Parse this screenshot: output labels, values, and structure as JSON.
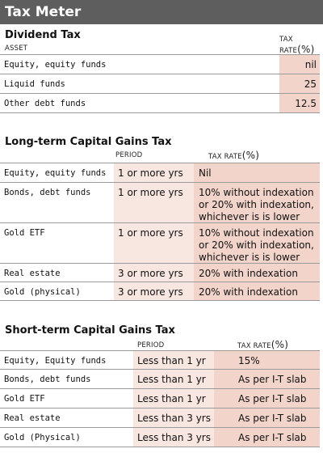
{
  "title": "Tax Meter",
  "dividend": {
    "heading": "Dividend Tax",
    "asset_hdr": "ASSET",
    "rate_hdr_line1": "TAX",
    "rate_hdr_line2": "RATE",
    "pct": "(%)",
    "rows": [
      {
        "asset": "Equity, equity funds",
        "rate": "nil"
      },
      {
        "asset": "Liquid funds",
        "rate": "25"
      },
      {
        "asset": "Other debt funds",
        "rate": "12.5"
      }
    ]
  },
  "ltcg": {
    "heading": "Long-term Capital Gains Tax",
    "period_hdr": "PERIOD",
    "rate_hdr": "TAX RATE",
    "pct": "(%)",
    "rows": [
      {
        "asset": "Equity, equity funds",
        "period": "1 or more yrs",
        "rate": "Nil"
      },
      {
        "asset": "Bonds, debt funds",
        "period": "1 or more yrs",
        "rate": "10% without indexation or 20% with indexation, whichever is is lower"
      },
      {
        "asset": "Gold ETF",
        "period": "1 or more yrs",
        "rate": "10% without indexation or 20% with indexation, whichever is is lower"
      },
      {
        "asset": "Real estate",
        "period": "3 or more yrs",
        "rate": "20% with indexation"
      },
      {
        "asset": "Gold (physical)",
        "period": "3 or more yrs",
        "rate": "20% with indexation"
      }
    ]
  },
  "stcg": {
    "heading": "Short-term Capital Gains Tax",
    "period_hdr": "PERIOD",
    "rate_hdr": "TAX RATE",
    "pct": "(%)",
    "rows": [
      {
        "asset": "Equity, Equity funds",
        "period": "Less than 1 yr",
        "rate": "15%"
      },
      {
        "asset": "Bonds, debt funds",
        "period": "Less than 1 yr",
        "rate": "As per I-T slab"
      },
      {
        "asset": "Gold ETF",
        "period": "Less than 1 yr",
        "rate": "As per I-T slab"
      },
      {
        "asset": "Real estate",
        "period": "Less than 3 yrs",
        "rate": "As per I-T slab"
      },
      {
        "asset": "Gold (Physical)",
        "period": "Less than 3 yrs",
        "rate": "As per I-T slab"
      }
    ]
  }
}
